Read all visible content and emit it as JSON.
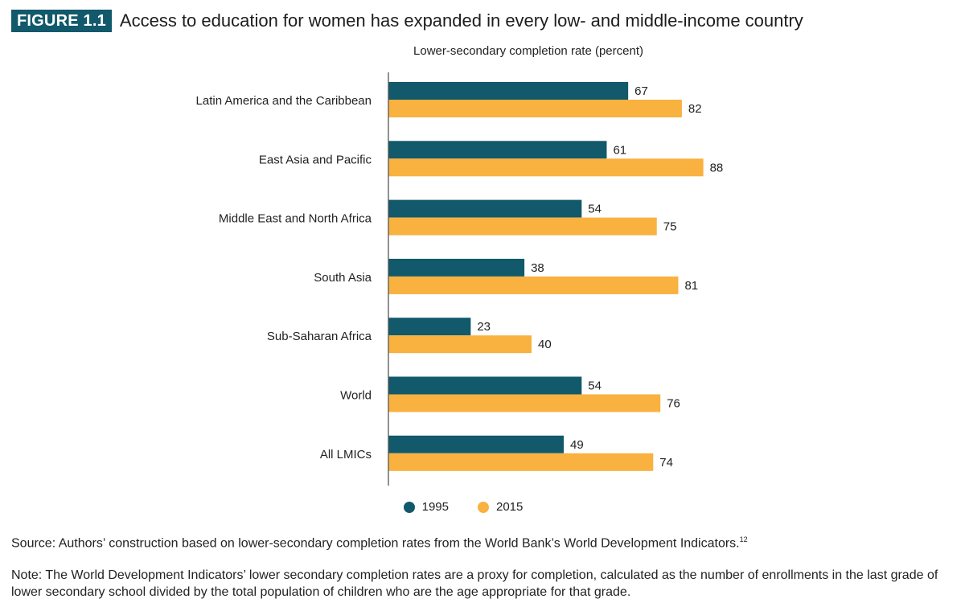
{
  "figure": {
    "badge": "FIGURE 1.1",
    "title": "Access to education for women has expanded in every low- and middle-income country",
    "source": "Source: Authors’ construction based on lower-secondary completion rates from the World Bank’s World Development Indicators.",
    "source_sup": "12",
    "note": "Note: The World Development Indicators’ lower secondary completion rates are a proxy for completion, calculated as the number of enrollments in the last grade of lower secondary school divided by the total population of children who are the age appropriate for that grade."
  },
  "colors": {
    "s1995": "#11596b",
    "s2015": "#f9b13f",
    "axis": "#555555"
  },
  "chart_data": {
    "type": "bar",
    "orientation": "horizontal",
    "title": "Lower-secondary completion rate (percent)",
    "categories": [
      "Latin America and the Caribbean",
      "East Asia and Pacific",
      "Middle East and North Africa",
      "South Asia",
      "Sub-Saharan Africa",
      "World",
      "All LMICs"
    ],
    "series": [
      {
        "name": "1995",
        "values": [
          67,
          61,
          54,
          38,
          23,
          54,
          49
        ]
      },
      {
        "name": "2015",
        "values": [
          82,
          88,
          75,
          81,
          40,
          76,
          74
        ]
      }
    ],
    "xlim": [
      0,
      100
    ],
    "grid": false,
    "legend": "bottom"
  }
}
